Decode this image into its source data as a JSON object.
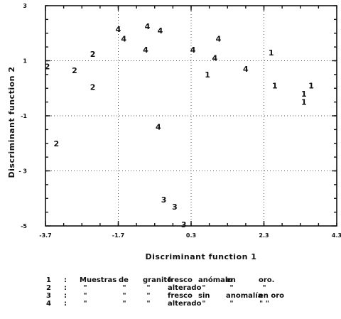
{
  "chart_data": {
    "type": "scatter",
    "title": "",
    "xlabel": "Discriminant  function 1",
    "ylabel": "Discriminant  function 2",
    "xlim": [
      -3.7,
      4.3
    ],
    "ylim": [
      -5,
      3
    ],
    "xticks": [
      -3.7,
      -1.7,
      0.3,
      2.3,
      4.3
    ],
    "xtick_labels": [
      "-3.7",
      "-1.7",
      "0.3",
      "2.3",
      "4.3"
    ],
    "yticks": [
      3,
      1,
      -1,
      -3,
      -5
    ],
    "ytick_labels": [
      "3",
      "1",
      "-1",
      "- 3",
      "-5"
    ],
    "grid": "dotted at x = -1.7, 0.3, 2.3 and y = 1, -1, -3",
    "minor_ticks": "4 per interval on all four sides",
    "points": [
      {
        "group": "1",
        "x": 2.5,
        "y": 1.3
      },
      {
        "group": "1",
        "x": 2.6,
        "y": 0.1
      },
      {
        "group": "1",
        "x": 3.4,
        "y": -0.2
      },
      {
        "group": "1",
        "x": 3.4,
        "y": -0.5
      },
      {
        "group": "1",
        "x": 3.6,
        "y": 0.1
      },
      {
        "group": "2",
        "x": -3.65,
        "y": 0.8
      },
      {
        "group": "2",
        "x": -2.9,
        "y": 0.65
      },
      {
        "group": "2",
        "x": -2.4,
        "y": 1.25
      },
      {
        "group": "2",
        "x": -2.4,
        "y": 0.05
      },
      {
        "group": "2",
        "x": -3.4,
        "y": -2.0
      },
      {
        "group": "3",
        "x": -0.45,
        "y": -4.05
      },
      {
        "group": "3",
        "x": -0.15,
        "y": -4.3
      },
      {
        "group": "3",
        "x": 0.1,
        "y": -4.95
      },
      {
        "group": "4",
        "x": -1.7,
        "y": 2.15
      },
      {
        "group": "4",
        "x": -1.55,
        "y": 1.8
      },
      {
        "group": "4",
        "x": -0.9,
        "y": 2.25
      },
      {
        "group": "4",
        "x": -0.95,
        "y": 1.4
      },
      {
        "group": "4",
        "x": -0.55,
        "y": 2.1
      },
      {
        "group": "4",
        "x": -0.6,
        "y": -1.4
      },
      {
        "group": "4",
        "x": 0.35,
        "y": 1.4
      },
      {
        "group": "4",
        "x": 0.95,
        "y": 1.1
      },
      {
        "group": "4",
        "x": 1.05,
        "y": 1.8
      },
      {
        "group": "4",
        "x": 1.8,
        "y": 0.7
      },
      {
        "group": "1",
        "x": 0.75,
        "y": 0.5
      }
    ],
    "legend": [
      {
        "key": "1",
        "sep": ":",
        "cols": [
          "Muestras",
          "de",
          "granito",
          "fresco",
          "anómalo",
          "en",
          "oro."
        ]
      },
      {
        "key": "2",
        "sep": ":",
        "cols": [
          "\"",
          "\"",
          "\"",
          "alterado",
          "\"",
          "\"",
          "\""
        ]
      },
      {
        "key": "3",
        "sep": ":",
        "cols": [
          "\"",
          "\"",
          "\"",
          "fresco",
          "sin",
          "anomalía",
          "en oro"
        ]
      },
      {
        "key": "4",
        "sep": ":",
        "cols": [
          "\"",
          "\"",
          "\"",
          "alterado",
          "\"",
          "\"",
          "\"  \""
        ]
      }
    ],
    "legend_placement": "bottom"
  }
}
